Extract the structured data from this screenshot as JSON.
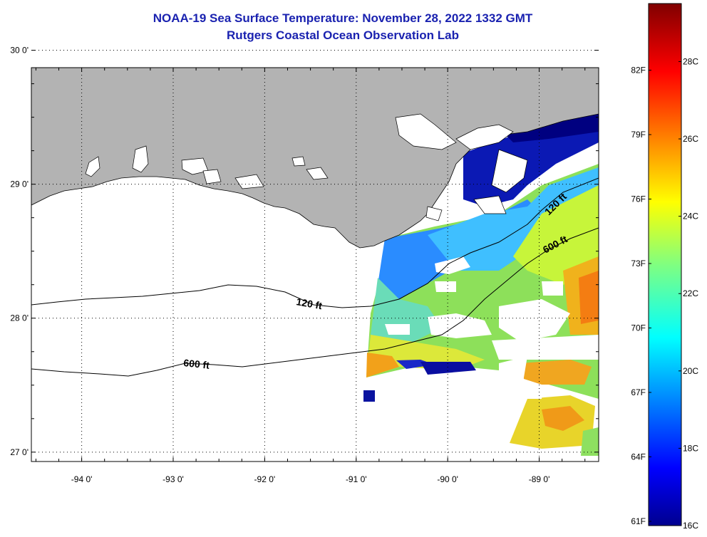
{
  "title": {
    "line1": "NOAA-19 Sea Surface Temperature:  November 28, 2022 1332 GMT",
    "line2": "Rutgers Coastal Ocean Observation Lab"
  },
  "map": {
    "lon_range": [
      -94.55,
      -88.35
    ],
    "lat_range": [
      26.93,
      29.87
    ],
    "lat_ticks": [
      {
        "value": 30,
        "label": "30 0'"
      },
      {
        "value": 29,
        "label": "29 0'"
      },
      {
        "value": 28,
        "label": "28 0'"
      },
      {
        "value": 27,
        "label": "27 0'"
      }
    ],
    "lon_ticks": [
      {
        "value": -94,
        "label": "-94 0'"
      },
      {
        "value": -93,
        "label": "-93 0'"
      },
      {
        "value": -92,
        "label": "-92 0'"
      },
      {
        "value": -91,
        "label": "-91 0'"
      },
      {
        "value": -90,
        "label": "-90 0'"
      },
      {
        "value": -89,
        "label": "-89 0'"
      }
    ],
    "contours": [
      {
        "label": "120 ft",
        "depth_ft": 120
      },
      {
        "label": "600 ft",
        "depth_ft": 600
      },
      {
        "label": "120 ft",
        "depth_ft": 120
      },
      {
        "label": "600 ft",
        "depth_ft": 600
      }
    ],
    "colors": {
      "land": "#b3b3b3",
      "no_data": "#ffffff",
      "coast": "#000000"
    }
  },
  "colorbar": {
    "range_c": [
      16,
      29.5
    ],
    "fahrenheit_labels": [
      "82F",
      "79F",
      "76F",
      "73F",
      "70F",
      "67F",
      "64F",
      "61F"
    ],
    "celsius_labels": [
      "28C",
      "26C",
      "24C",
      "22C",
      "20C",
      "18C",
      "16C"
    ]
  }
}
